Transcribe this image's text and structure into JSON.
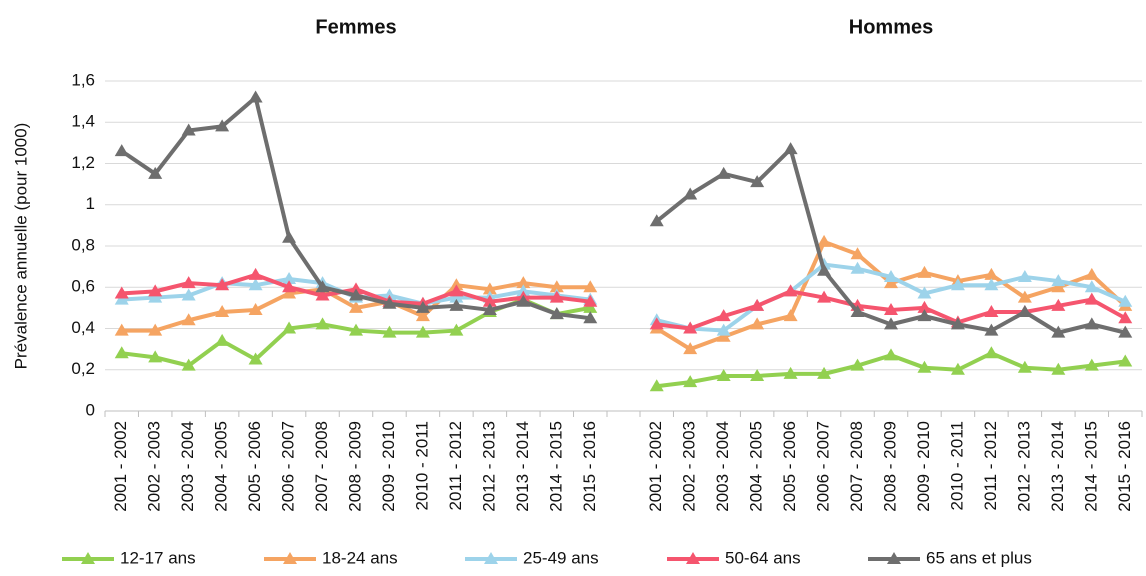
{
  "chart_data": {
    "type": "line",
    "y_label": "Prévalence annuelle (pour 1000)",
    "ylim": [
      0,
      1.6
    ],
    "yticks": [
      0,
      {
        "value": 0.2,
        "label": "0,2"
      },
      {
        "value": 0.4,
        "label": "0,4"
      },
      {
        "value": 0.6,
        "label": "0,6"
      },
      {
        "value": 0.8,
        "label": "0,8"
      },
      1,
      {
        "value": 1.2,
        "label": "1,2"
      },
      {
        "value": 1.4,
        "label": "1,4"
      },
      {
        "value": 1.6,
        "label": "1,6"
      }
    ],
    "grid": true,
    "legend": "bottom",
    "categories": [
      "2001 - 2002",
      "2002 - 2003",
      "2003 - 2004",
      "2004 - 2005",
      "2005 - 2006",
      "2006 - 2007",
      "2007 - 2008",
      "2008 - 2009",
      "2009 - 2010",
      "2010 - 2011",
      "2011 - 2012",
      "2012 - 2013",
      "2013 - 2014",
      "2014 - 2015",
      "2015 - 2016"
    ],
    "series": [
      {
        "name": "12-17 ans",
        "color": "#92d050"
      },
      {
        "name": "18-24 ans",
        "color": "#f5a462"
      },
      {
        "name": "25-49 ans",
        "color": "#9dd3ea"
      },
      {
        "name": "50-64 ans",
        "color": "#f5556e"
      },
      {
        "name": "65 ans et plus",
        "color": "#6e6e6e"
      }
    ],
    "panels": [
      {
        "title": "Femmes",
        "series": [
          {
            "values": [
              0.28,
              0.26,
              0.22,
              0.34,
              0.25,
              0.4,
              0.42,
              0.39,
              0.38,
              0.38,
              0.39,
              0.48,
              0.54,
              0.47,
              0.5
            ]
          },
          {
            "values": [
              0.39,
              0.39,
              0.44,
              0.48,
              0.49,
              0.57,
              0.59,
              0.5,
              0.53,
              0.46,
              0.61,
              0.59,
              0.62,
              0.6,
              0.6
            ]
          },
          {
            "values": [
              0.54,
              0.55,
              0.56,
              0.62,
              0.61,
              0.64,
              0.62,
              0.55,
              0.56,
              0.52,
              0.55,
              0.55,
              0.58,
              0.56,
              0.54
            ]
          },
          {
            "values": [
              0.57,
              0.58,
              0.62,
              0.61,
              0.66,
              0.6,
              0.56,
              0.59,
              0.53,
              0.52,
              0.58,
              0.53,
              0.55,
              0.55,
              0.53
            ]
          },
          {
            "values": [
              1.26,
              1.15,
              1.36,
              1.38,
              1.52,
              0.84,
              0.6,
              0.56,
              0.52,
              0.5,
              0.51,
              0.49,
              0.53,
              0.47,
              0.45
            ]
          }
        ]
      },
      {
        "title": "Hommes",
        "series": [
          {
            "values": [
              0.12,
              0.14,
              0.17,
              0.17,
              0.18,
              0.18,
              0.22,
              0.27,
              0.21,
              0.2,
              0.28,
              0.21,
              0.2,
              0.22,
              0.24
            ]
          },
          {
            "values": [
              0.4,
              0.3,
              0.36,
              0.42,
              0.46,
              0.82,
              0.76,
              0.62,
              0.67,
              0.63,
              0.66,
              0.55,
              0.6,
              0.66,
              0.51
            ]
          },
          {
            "values": [
              0.44,
              0.4,
              0.39,
              0.51,
              0.58,
              0.71,
              0.69,
              0.65,
              0.57,
              0.61,
              0.61,
              0.65,
              0.63,
              0.6,
              0.53
            ]
          },
          {
            "values": [
              0.42,
              0.4,
              0.46,
              0.51,
              0.58,
              0.55,
              0.51,
              0.49,
              0.5,
              0.43,
              0.48,
              0.48,
              0.51,
              0.54,
              0.45
            ]
          },
          {
            "values": [
              0.92,
              1.05,
              1.15,
              1.11,
              1.27,
              0.68,
              0.48,
              0.42,
              0.46,
              0.42,
              0.39,
              0.48,
              0.38,
              0.42,
              0.38
            ]
          }
        ]
      }
    ]
  }
}
